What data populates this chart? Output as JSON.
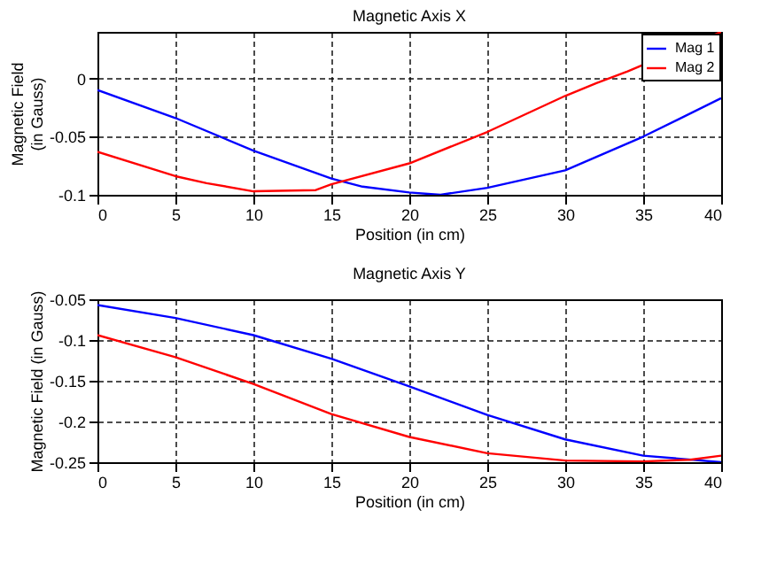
{
  "chart_data": [
    {
      "type": "line",
      "title": "Magnetic Axis X",
      "xlabel": "Position (in cm)",
      "ylabel": "Magnetic Field\n(in Gauss)",
      "xlim": [
        0,
        40
      ],
      "xticks": [
        0,
        5,
        10,
        15,
        20,
        25,
        30,
        35,
        40
      ],
      "ylim": [
        -0.1,
        0.04
      ],
      "yticks": [
        -0.1,
        -0.05,
        0
      ],
      "grid": true,
      "legend": "top right",
      "line_style": "solid",
      "series": [
        {
          "name": "Mag 1",
          "color": "#0000ff",
          "x": [
            0,
            5,
            10,
            15,
            17,
            20,
            22,
            25,
            30,
            35,
            40
          ],
          "values": [
            -0.01,
            -0.034,
            -0.062,
            -0.086,
            -0.093,
            -0.098,
            -0.1,
            -0.094,
            -0.079,
            -0.05,
            -0.017
          ]
        },
        {
          "name": "Mag 2",
          "color": "#ff0000",
          "x": [
            0,
            5,
            7,
            10,
            14,
            15,
            20,
            25,
            30,
            32,
            34,
            40
          ],
          "values": [
            -0.063,
            -0.084,
            -0.09,
            -0.097,
            -0.096,
            -0.091,
            -0.073,
            -0.046,
            -0.015,
            -0.004,
            0.006,
            0.04
          ]
        }
      ]
    },
    {
      "type": "line",
      "title": "Magnetic Axis Y",
      "xlabel": "Position (in cm)",
      "ylabel": "Magnetic Field (in Gauss)",
      "xlim": [
        0,
        40
      ],
      "xticks": [
        0,
        5,
        10,
        15,
        20,
        25,
        30,
        35,
        40
      ],
      "ylim": [
        -0.25,
        -0.05
      ],
      "yticks": [
        -0.25,
        -0.2,
        -0.15,
        -0.1,
        -0.05
      ],
      "grid": true,
      "legend": "top right",
      "line_style": "solid",
      "series": [
        {
          "name": "Mag 1",
          "color": "#0000ff",
          "x": [
            0,
            5,
            10,
            15,
            20,
            25,
            30,
            35,
            40
          ],
          "values": [
            -0.057,
            -0.073,
            -0.094,
            -0.123,
            -0.157,
            -0.192,
            -0.222,
            -0.242,
            -0.25
          ]
        },
        {
          "name": "Mag 2",
          "color": "#ff0000",
          "x": [
            0,
            5,
            10,
            15,
            20,
            25,
            30,
            35,
            38,
            40
          ],
          "values": [
            -0.094,
            -0.121,
            -0.154,
            -0.191,
            -0.219,
            -0.239,
            -0.248,
            -0.249,
            -0.247,
            -0.242
          ]
        }
      ]
    }
  ]
}
